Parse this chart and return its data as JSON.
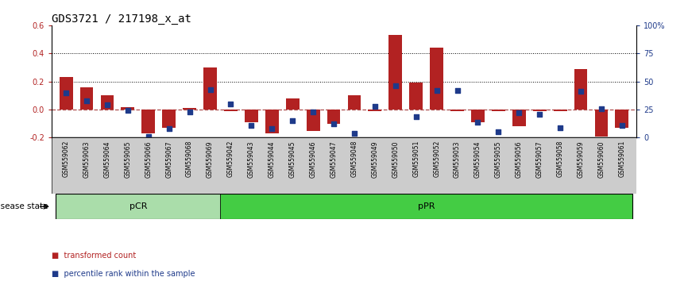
{
  "title": "GDS3721 / 217198_x_at",
  "samples": [
    "GSM559062",
    "GSM559063",
    "GSM559064",
    "GSM559065",
    "GSM559066",
    "GSM559067",
    "GSM559068",
    "GSM559069",
    "GSM559042",
    "GSM559043",
    "GSM559044",
    "GSM559045",
    "GSM559046",
    "GSM559047",
    "GSM559048",
    "GSM559049",
    "GSM559050",
    "GSM559051",
    "GSM559052",
    "GSM559053",
    "GSM559054",
    "GSM559055",
    "GSM559056",
    "GSM559057",
    "GSM559058",
    "GSM559059",
    "GSM559060",
    "GSM559061"
  ],
  "transformed_count": [
    0.23,
    0.16,
    0.1,
    0.02,
    -0.17,
    -0.13,
    0.01,
    0.3,
    -0.01,
    -0.09,
    -0.17,
    0.08,
    -0.15,
    -0.1,
    0.1,
    -0.01,
    0.53,
    0.19,
    0.44,
    -0.01,
    -0.09,
    -0.01,
    -0.12,
    -0.01,
    -0.01,
    0.29,
    -0.19,
    -0.13
  ],
  "percentile_rank": [
    0.4,
    0.33,
    0.29,
    0.24,
    0.01,
    0.08,
    0.23,
    0.43,
    0.3,
    0.11,
    0.08,
    0.15,
    0.23,
    0.12,
    0.04,
    0.28,
    0.46,
    0.19,
    0.42,
    0.42,
    0.14,
    0.05,
    0.22,
    0.21,
    0.09,
    0.41,
    0.26,
    0.11
  ],
  "pCR_count": 8,
  "pPR_count": 20,
  "bar_color": "#b22222",
  "dot_color": "#1e3a8a",
  "pCR_color": "#aaddaa",
  "pPR_color": "#44cc44",
  "ylim_left": [
    -0.2,
    0.6
  ],
  "ylim_right": [
    0,
    100
  ],
  "right_ticks": [
    0,
    25,
    50,
    75,
    100
  ],
  "right_tick_labels": [
    "0",
    "25",
    "50",
    "75",
    "100%"
  ],
  "left_ticks": [
    -0.2,
    0.0,
    0.2,
    0.4,
    0.6
  ],
  "dotted_lines": [
    0.2,
    0.4
  ],
  "zero_line": 0.0,
  "disease_state_label": "disease state",
  "pCR_label": "pCR",
  "pPR_label": "pPR",
  "legend_bar_label": "transformed count",
  "legend_dot_label": "percentile rank within the sample",
  "title_fontsize": 10,
  "tick_fontsize": 7,
  "bar_width": 0.65,
  "dot_size": 20
}
